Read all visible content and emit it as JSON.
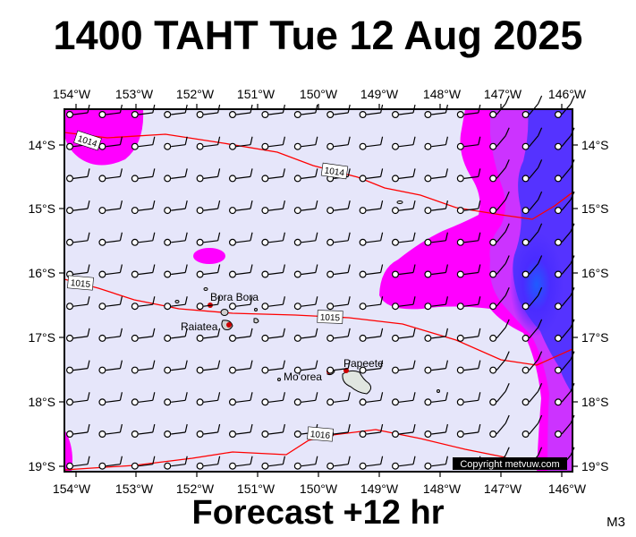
{
  "title": "1400 TAHT Tue 12 Aug 2025",
  "subtitle": "Forecast +12 hr",
  "model_code": "M3",
  "copyright": "Copyright metvuw.com",
  "lon_labels": [
    "154°W",
    "153°W",
    "152°W",
    "151°W",
    "150°W",
    "149°W",
    "148°W",
    "147°W",
    "146°W"
  ],
  "lat_labels": [
    "14°S",
    "15°S",
    "16°S",
    "17°S",
    "18°S",
    "19°S"
  ],
  "isobar_labels": [
    "1014",
    "1014",
    "1015",
    "1015",
    "1016"
  ],
  "place_labels": [
    "Bora Bora",
    "Raiatea",
    "Mo'orea",
    "Papeete"
  ],
  "colors": {
    "background": "#e6e6fa",
    "magenta": "#ff00ff",
    "purple": "#cc33ff",
    "blue": "#3333ff",
    "isobar": "#ff0000"
  }
}
